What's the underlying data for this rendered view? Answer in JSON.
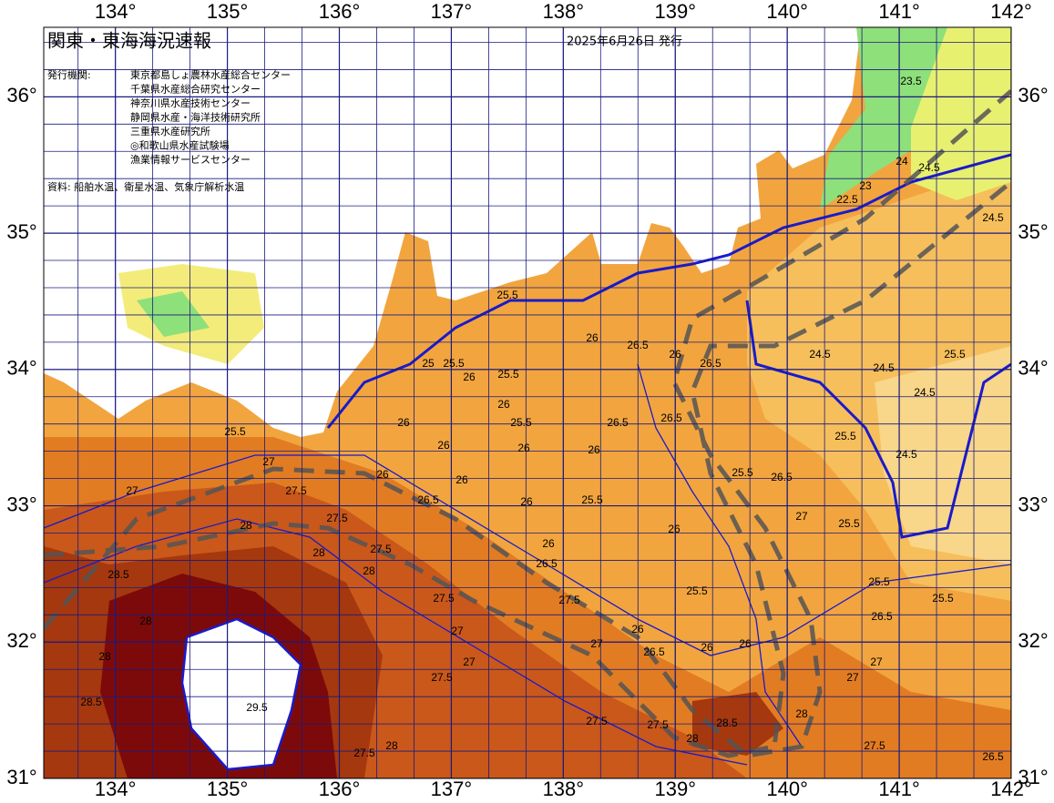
{
  "header": {
    "title": "関東・東海海況速報",
    "issue_date": "2025年6月26日 発行",
    "publisher_label": "発行機関:",
    "publishers": [
      "東京都島しょ農林水産総合センター",
      "千葉県水産総合研究センター",
      "神奈川県水産技術センター",
      "静岡県水産・海洋技術研究所",
      "三重県水産研究所",
      "◎和歌山県水産試験場",
      "漁業情報サービスセンター"
    ],
    "sources": "資料: 船舶水温、衛星水温、気象庁解析水温"
  },
  "map": {
    "lonlim": [
      133.36,
      142
    ],
    "latlim": [
      31,
      36.51
    ],
    "lon_ticks": [
      {
        "value": 134,
        "label": "134°"
      },
      {
        "value": 135,
        "label": "135°"
      },
      {
        "value": 136,
        "label": "136°"
      },
      {
        "value": 137,
        "label": "137°"
      },
      {
        "value": 138,
        "label": "138°"
      },
      {
        "value": 139,
        "label": "139°"
      },
      {
        "value": 140,
        "label": "140°"
      },
      {
        "value": 141,
        "label": "141°"
      },
      {
        "value": 142,
        "label": "142°"
      }
    ],
    "lat_ticks": [
      {
        "value": 31,
        "label": "31°"
      },
      {
        "value": 32,
        "label": "32°"
      },
      {
        "value": 33,
        "label": "33°"
      },
      {
        "value": 34,
        "label": "34°"
      },
      {
        "value": 35,
        "label": "35°"
      },
      {
        "value": 36,
        "label": "36°"
      }
    ],
    "contour_labels": [
      25.5,
      26,
      26.5,
      26,
      26.5,
      25,
      25.5,
      26,
      25.5,
      26,
      25.5,
      26.5,
      26.5,
      26,
      25.5,
      26,
      26,
      26,
      26,
      26,
      27,
      27.5,
      27,
      28,
      27.5,
      28,
      26.5,
      26,
      25.5,
      26,
      26,
      27,
      25.5,
      26.5,
      27.5,
      26.5,
      28,
      28.5,
      28,
      27.5,
      27.5,
      27,
      27,
      26,
      28,
      27.5,
      27,
      26.5,
      26,
      26,
      25.5,
      25.5,
      25.5,
      25.5,
      27,
      26.5,
      27,
      28,
      28,
      27.5,
      27.5,
      28.5,
      26.5,
      27.5,
      24.5,
      24.5,
      24.5,
      25.5,
      25.5,
      24.5,
      24.5,
      24.5,
      24,
      22.5,
      23,
      23.5,
      28,
      27.5,
      29.5,
      28.5
    ]
  }
}
